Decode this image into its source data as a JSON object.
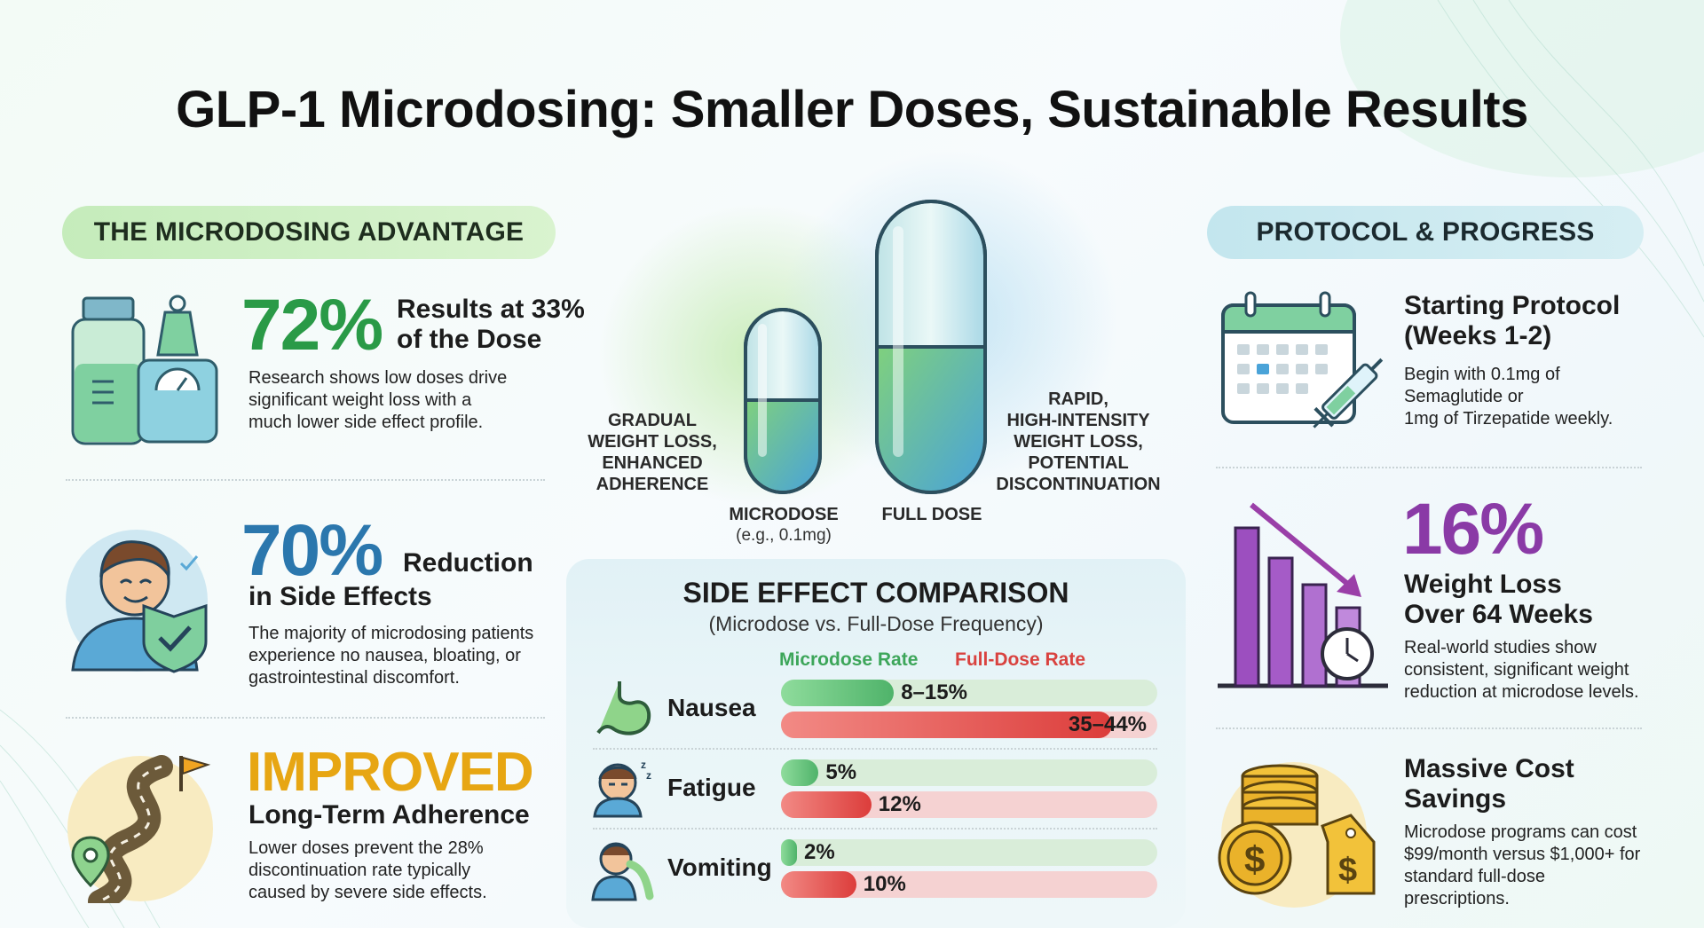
{
  "title": "GLP-1 Microdosing: Smaller Doses, Sustainable Results",
  "left_header": "THE MICRODOSING ADVANTAGE",
  "right_header": "PROTOCOL & PROGRESS",
  "left_items": [
    {
      "big": "72%",
      "label_line1": "Results at 33%",
      "label_line2": "of the Dose",
      "desc": [
        "Research shows low doses drive",
        "significant weight loss with a",
        "much lower side effect profile."
      ]
    },
    {
      "big": "70%",
      "label_inline": "Reduction",
      "label_line2": "in Side Effects",
      "desc": [
        "The majority of microdosing patients",
        "experience no nausea, bloating, or",
        "gastrointestinal discomfort."
      ]
    },
    {
      "big": "IMPROVED",
      "label_line2": "Long-Term Adherence",
      "desc": [
        "Lower doses prevent the 28%",
        "discontinuation rate typically",
        "caused by severe side effects."
      ]
    }
  ],
  "center": {
    "left_caption": [
      "GRADUAL",
      "WEIGHT LOSS,",
      "ENHANCED",
      "ADHERENCE"
    ],
    "right_caption": [
      "RAPID,",
      "HIGH-INTENSITY",
      "WEIGHT LOSS,",
      "POTENTIAL",
      "DISCONTINUATION"
    ],
    "micro_label": "MICRODOSE",
    "micro_sub": "(e.g., 0.1mg)",
    "full_label": "FULL DOSE"
  },
  "chart_data": {
    "type": "bar",
    "title": "SIDE EFFECT COMPARISON",
    "subtitle": "(Microdose vs. Full-Dose Frequency)",
    "legend": [
      "Microdose Rate",
      "Full-Dose Rate"
    ],
    "categories": [
      "Nausea",
      "Fatigue",
      "Vomiting"
    ],
    "series": [
      {
        "name": "Microdose Rate",
        "values": [
          15,
          5,
          2
        ],
        "labels": [
          "8–15%",
          "5%",
          "2%"
        ],
        "color": "#5cc27a"
      },
      {
        "name": "Full-Dose Rate",
        "values": [
          44,
          12,
          10
        ],
        "labels": [
          "35–44%",
          "12%",
          "10%"
        ],
        "color": "#e8514f"
      }
    ],
    "ylim": [
      0,
      50
    ]
  },
  "right_items": [
    {
      "title_line1": "Starting Protocol",
      "title_line2": "(Weeks 1-2)",
      "desc": [
        "Begin with 0.1mg of",
        "Semaglutide or",
        "1mg of Tirzepatide weekly."
      ]
    },
    {
      "big": "16%",
      "title_line1": "Weight Loss",
      "title_line2": "Over 64 Weeks",
      "desc": [
        "Real-world studies show",
        "consistent, significant weight",
        "reduction at microdose levels."
      ]
    },
    {
      "title_line1": "Massive Cost",
      "title_line2": "Savings",
      "desc": [
        "Microdose programs can cost",
        "$99/month versus $1,000+ for",
        "standard full-dose",
        "prescriptions."
      ]
    }
  ],
  "colors": {
    "green": "#2a9a47",
    "blue": "#2b77ad",
    "gold": "#e7a613",
    "purple": "#8a3aa6",
    "red": "#d9423f"
  }
}
